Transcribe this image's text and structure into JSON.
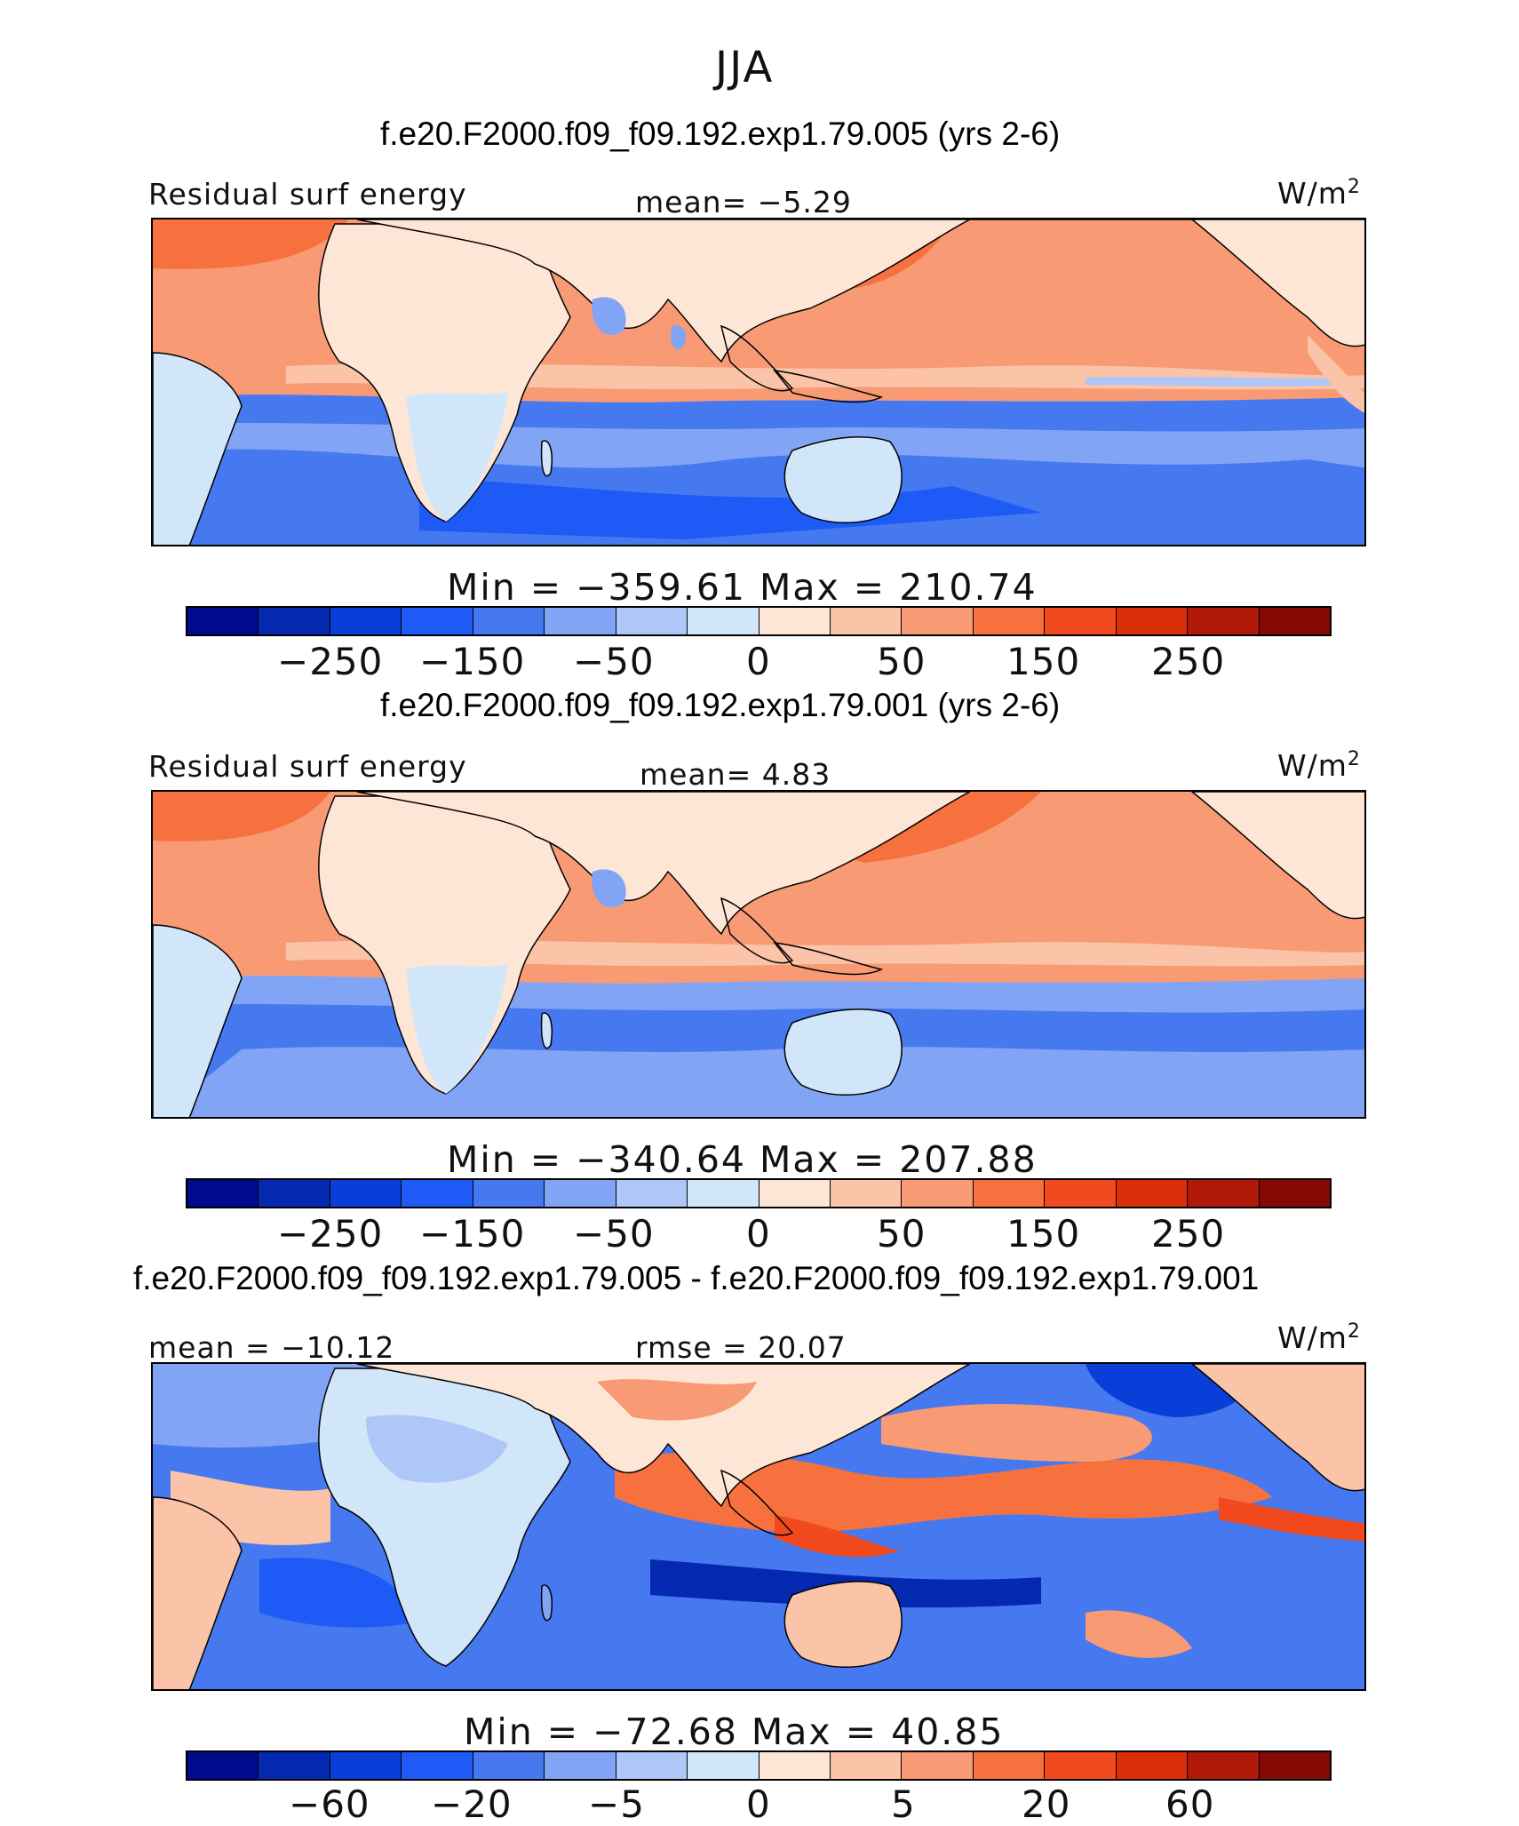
{
  "figure": {
    "season": "JJA"
  },
  "panels": [
    {
      "title": "f.e20.F2000.f09_f09.192.exp1.79.005 (yrs 2-6)",
      "left_label": "Residual surf energy",
      "center_label": "mean=   −5.29",
      "units_base": "W/m",
      "units_exp": "2",
      "stats": "Min = −359.61 Max = 210.74",
      "min": -359.61,
      "max": 210.74,
      "mean": -5.29,
      "colorbar_ticks": [
        "−250",
        "−150",
        "−50",
        "0",
        "50",
        "150",
        "250"
      ]
    },
    {
      "title": "f.e20.F2000.f09_f09.192.exp1.79.001 (yrs 2-6)",
      "left_label": "Residual surf energy",
      "center_label": "mean=    4.83",
      "units_base": "W/m",
      "units_exp": "2",
      "stats": "Min = −340.64 Max = 207.88",
      "min": -340.64,
      "max": 207.88,
      "mean": 4.83,
      "colorbar_ticks": [
        "−250",
        "−150",
        "−50",
        "0",
        "50",
        "150",
        "250"
      ]
    },
    {
      "title": "f.e20.F2000.f09_f09.192.exp1.79.005 - f.e20.F2000.f09_f09.192.exp1.79.001",
      "left_label": "mean = −10.12",
      "center_label": "rmse =  20.07",
      "units_base": "W/m",
      "units_exp": "2",
      "stats": "Min = −72.68 Max =  40.85",
      "min": -72.68,
      "max": 40.85,
      "mean": -10.12,
      "rmse": 20.07,
      "colorbar_ticks": [
        "−60",
        "−20",
        "−5",
        "0",
        "5",
        "20",
        "60"
      ]
    }
  ],
  "colorbar_colors": [
    "#000a8c",
    "#0528b0",
    "#0a3ed8",
    "#1e5af5",
    "#4678f0",
    "#82a4f5",
    "#aec6f8",
    "#d2e6fa",
    "#fde6d6",
    "#fbc3a8",
    "#f89b74",
    "#f7713f",
    "#f04a1e",
    "#dd2e0a",
    "#b0190a",
    "#850a05"
  ],
  "legend_note": "Colorbar has 16 bins; tick labels at bin boundaries."
}
